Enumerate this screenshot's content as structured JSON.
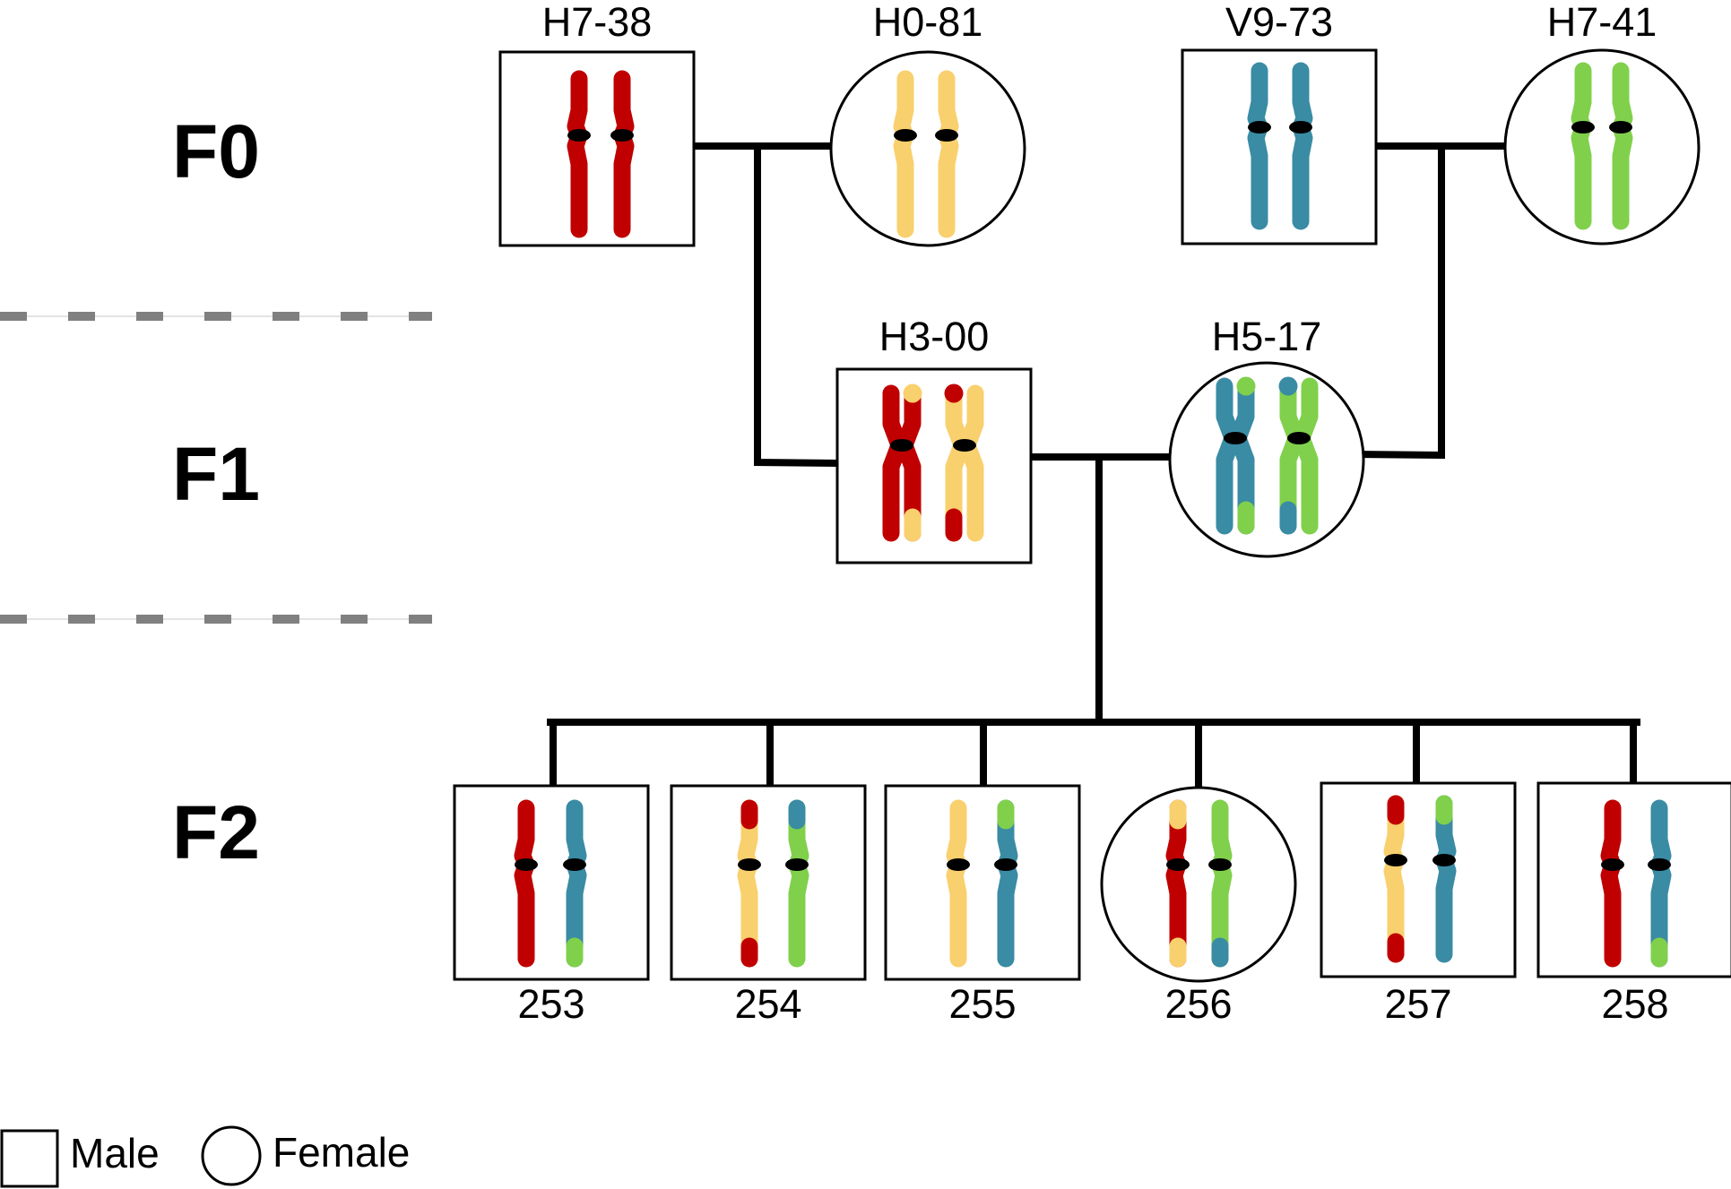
{
  "generations": [
    "F0",
    "F1",
    "F2"
  ],
  "colors": {
    "red": "#c00000",
    "yellow": "#f9d06e",
    "blue": "#3a8ba4",
    "green": "#80d04c"
  },
  "individuals": [
    {
      "id": "H7-38",
      "label": "H7-38",
      "sex": "male",
      "chromosomes": [
        {
          "arm_top": "red",
          "arm_bottom": "red"
        },
        {
          "arm_top": "red",
          "arm_bottom": "red"
        }
      ]
    },
    {
      "id": "H0-81",
      "label": "H0-81",
      "sex": "female",
      "chromosomes": [
        {
          "arm_top": "yellow",
          "arm_bottom": "yellow"
        },
        {
          "arm_top": "yellow",
          "arm_bottom": "yellow"
        }
      ]
    },
    {
      "id": "V9-73",
      "label": "V9-73",
      "sex": "male",
      "chromosomes": [
        {
          "arm_top": "blue",
          "arm_bottom": "blue"
        },
        {
          "arm_top": "blue",
          "arm_bottom": "blue"
        }
      ]
    },
    {
      "id": "H7-41",
      "label": "H7-41",
      "sex": "female",
      "chromosomes": [
        {
          "arm_top": "green",
          "arm_bottom": "green"
        },
        {
          "arm_top": "green",
          "arm_bottom": "green"
        }
      ]
    },
    {
      "id": "H3-00",
      "label": "H3-00",
      "sex": "male",
      "chromosomes": [
        {
          "main": "red",
          "tips": "yellow"
        },
        {
          "main": "yellow",
          "tips": "red"
        }
      ]
    },
    {
      "id": "H5-17",
      "label": "H5-17",
      "sex": "female",
      "chromosomes": [
        {
          "main": "blue",
          "tips": "green"
        },
        {
          "main": "green",
          "tips": "blue"
        }
      ]
    },
    {
      "id": "253",
      "label": "253",
      "sex": "male",
      "chromosomes": [
        {
          "main": "red"
        },
        {
          "main": "blue",
          "bottom_tip": "green"
        }
      ]
    },
    {
      "id": "254",
      "label": "254",
      "sex": "male",
      "chromosomes": [
        {
          "main": "yellow",
          "top_tip": "red",
          "bottom_tip": "red"
        },
        {
          "main": "green",
          "top_tip": "blue"
        }
      ]
    },
    {
      "id": "255",
      "label": "255",
      "sex": "male",
      "chromosomes": [
        {
          "main": "yellow"
        },
        {
          "main": "blue",
          "top_tip": "green"
        }
      ]
    },
    {
      "id": "256",
      "label": "256",
      "sex": "female",
      "chromosomes": [
        {
          "main": "red",
          "top_tip": "yellow",
          "bottom_tip": "yellow"
        },
        {
          "main": "green",
          "bottom_tip": "blue"
        }
      ]
    },
    {
      "id": "257",
      "label": "257",
      "sex": "male",
      "chromosomes": [
        {
          "main": "yellow",
          "top_tip": "red",
          "bottom_tip": "red"
        },
        {
          "main": "blue",
          "top_tip": "green"
        }
      ]
    },
    {
      "id": "258",
      "label": "258",
      "sex": "male",
      "chromosomes": [
        {
          "main": "red"
        },
        {
          "main": "blue",
          "bottom_tip": "green"
        }
      ]
    }
  ],
  "crosses": [
    {
      "parents": [
        "H7-38",
        "H0-81"
      ],
      "offspring": [
        "H3-00"
      ]
    },
    {
      "parents": [
        "V9-73",
        "H7-41"
      ],
      "offspring": [
        "H5-17"
      ]
    },
    {
      "parents": [
        "H3-00",
        "H5-17"
      ],
      "offspring": [
        "253",
        "254",
        "255",
        "256",
        "257",
        "258"
      ]
    }
  ],
  "legend": {
    "male_label": "Male",
    "female_label": "Female"
  }
}
